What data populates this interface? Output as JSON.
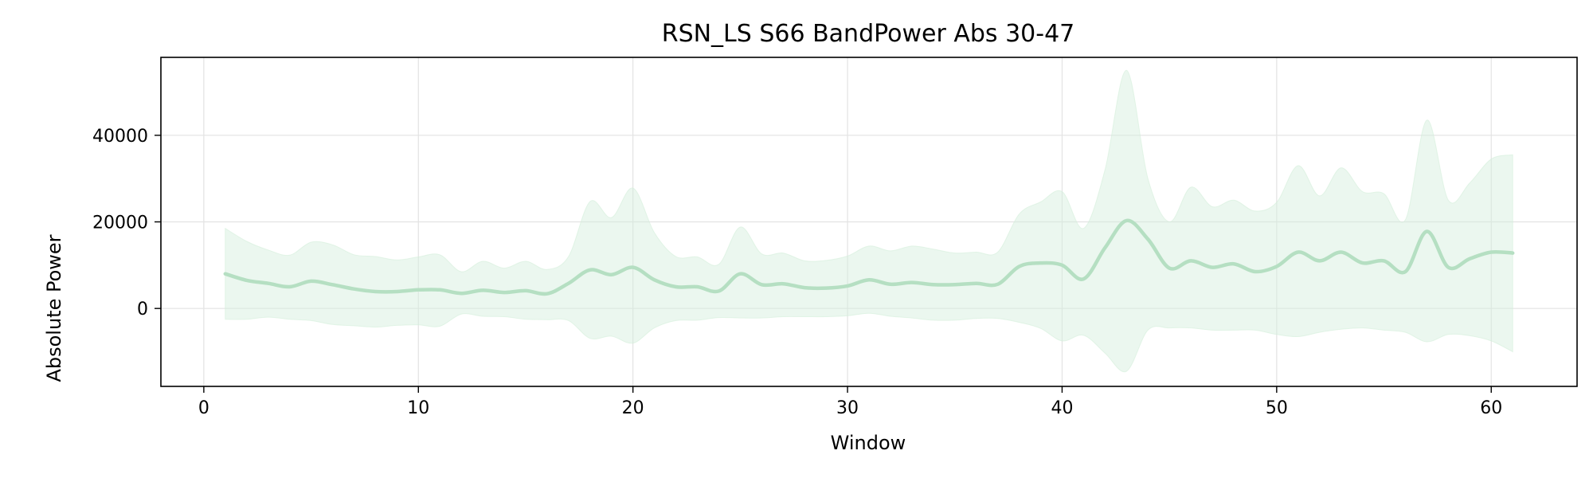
{
  "chart_data": {
    "type": "line",
    "title": "RSN_LS S66 BandPower Abs 30-47",
    "xlabel": "Window",
    "ylabel": "Absolute Power",
    "xlim": [
      -2,
      64
    ],
    "ylim": [
      -18000,
      58000
    ],
    "xticks": [
      0,
      10,
      20,
      30,
      40,
      50,
      60
    ],
    "yticks": [
      0,
      20000,
      40000
    ],
    "xtick_labels": [
      "0",
      "10",
      "20",
      "30",
      "40",
      "50",
      "60"
    ],
    "ytick_labels": [
      "0",
      "20000",
      "40000"
    ],
    "grid": true,
    "line_color": "#b5dfc2",
    "band_color": "#d3eedb",
    "x": [
      1,
      2,
      3,
      4,
      5,
      6,
      7,
      8,
      9,
      10,
      11,
      12,
      13,
      14,
      15,
      16,
      17,
      18,
      19,
      20,
      21,
      22,
      23,
      24,
      25,
      26,
      27,
      28,
      29,
      30,
      31,
      32,
      33,
      34,
      35,
      36,
      37,
      38,
      39,
      40,
      41,
      42,
      43,
      44,
      45,
      46,
      47,
      48,
      49,
      50,
      51,
      52,
      53,
      54,
      55,
      56,
      57,
      58,
      59,
      60,
      61
    ],
    "mean": [
      8000,
      6500,
      5800,
      5000,
      6300,
      5500,
      4500,
      3900,
      3900,
      4300,
      4300,
      3500,
      4200,
      3700,
      4100,
      3400,
      5800,
      8900,
      7800,
      9500,
      6600,
      5000,
      5000,
      4000,
      8000,
      5500,
      5700,
      4800,
      4700,
      5200,
      6600,
      5600,
      6000,
      5500,
      5500,
      5800,
      5600,
      9700,
      10500,
      10000,
      6800,
      14000,
      20300,
      16000,
      9300,
      11000,
      9500,
      10300,
      8500,
      9700,
      13000,
      11000,
      13000,
      10500,
      11000,
      8500,
      17800,
      9500,
      11500,
      13000,
      12800
    ],
    "upper": [
      18500,
      15500,
      13500,
      12300,
      15300,
      14700,
      12400,
      12000,
      11200,
      11900,
      12400,
      8500,
      10900,
      9300,
      10900,
      9000,
      12000,
      24700,
      21000,
      27800,
      17500,
      12000,
      11900,
      10200,
      18800,
      12600,
      12800,
      11000,
      11100,
      12100,
      14400,
      13300,
      14400,
      13700,
      12800,
      13000,
      13000,
      21800,
      24600,
      27000,
      18500,
      32000,
      55000,
      30000,
      20000,
      28000,
      23500,
      25000,
      22500,
      24500,
      33000,
      26000,
      32500,
      27000,
      26500,
      20500,
      43500,
      25000,
      29000,
      34500,
      35500
    ],
    "lower": [
      -2500,
      -2500,
      -2000,
      -2500,
      -2800,
      -3700,
      -4000,
      -4300,
      -3900,
      -3800,
      -4100,
      -1300,
      -1800,
      -1900,
      -2500,
      -2600,
      -2800,
      -6900,
      -6400,
      -8000,
      -4500,
      -2800,
      -2700,
      -2100,
      -2200,
      -2200,
      -1900,
      -1900,
      -1900,
      -1700,
      -1100,
      -1800,
      -2200,
      -2700,
      -2700,
      -2300,
      -2300,
      -3200,
      -4600,
      -7500,
      -6200,
      -10300,
      -14500,
      -5000,
      -4500,
      -4500,
      -5000,
      -5000,
      -5000,
      -6000,
      -6500,
      -5500,
      -4800,
      -4500,
      -5000,
      -5500,
      -7700,
      -6000,
      -6300,
      -7500,
      -10000
    ]
  }
}
